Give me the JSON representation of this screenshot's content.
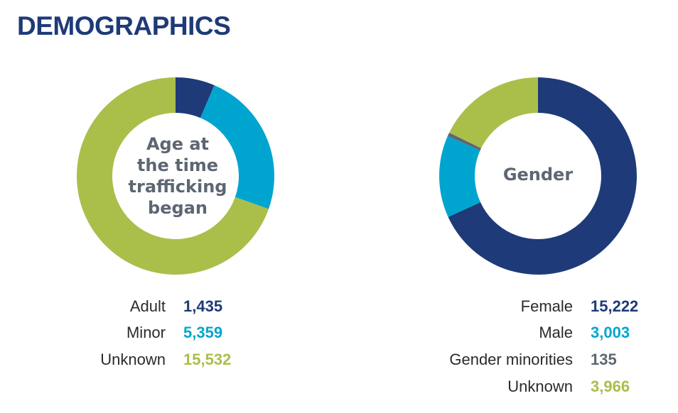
{
  "title": "DEMOGRAPHICS",
  "chart_data": [
    {
      "type": "pie",
      "title": "Age at the time trafficking began",
      "title_lines": [
        "Age at",
        "the time",
        "trafficking",
        "began"
      ],
      "categories": [
        "Adult",
        "Minor",
        "Unknown"
      ],
      "values": [
        1435,
        5359,
        15532
      ],
      "value_labels": [
        "1,435",
        "5,359",
        "15,532"
      ],
      "colors": [
        "#1e3a78",
        "#00a5cf",
        "#a9bf4a"
      ]
    },
    {
      "type": "pie",
      "title": "Gender",
      "title_lines": [
        "Gender"
      ],
      "categories": [
        "Female",
        "Male",
        "Gender minorities",
        "Unknown"
      ],
      "values": [
        15222,
        3003,
        135,
        3966
      ],
      "value_labels": [
        "15,222",
        "3,003",
        "135",
        "3,966"
      ],
      "colors": [
        "#1e3a78",
        "#00a5cf",
        "#5d6672",
        "#a9bf4a"
      ]
    }
  ]
}
